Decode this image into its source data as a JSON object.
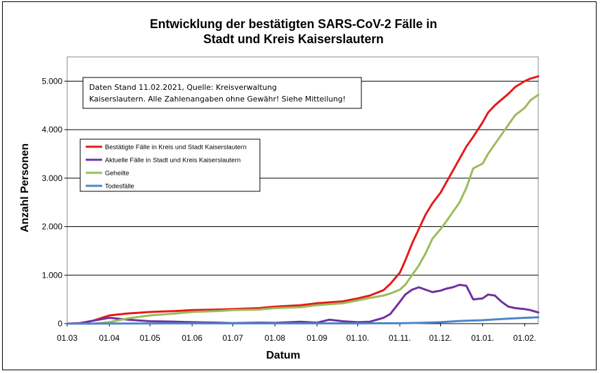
{
  "chart_data": {
    "type": "line",
    "title_line1": "Entwicklung der bestätigten SARS-CoV-2 Fälle in",
    "title_line2": "Stadt und Kreis Kaiserslautern",
    "xlabel": "Datum",
    "ylabel": "Anzahl Personen",
    "note_line1": "Daten Stand 11.02.2021, Quelle: Kreisverwaltung",
    "note_line2": "Kaiserslautern. Alle Zahlenangaben ohne Gewähr! Siehe Mitteilung!",
    "xlim": [
      "2020-03-01",
      "2021-02-11"
    ],
    "ylim": [
      0,
      5500
    ],
    "yticks": [
      0,
      1000,
      2000,
      3000,
      4000,
      5000
    ],
    "ytick_labels": [
      "0",
      "1.000",
      "2.000",
      "3.000",
      "4.000",
      "5.000"
    ],
    "xticks": [
      "2020-03-01",
      "2020-04-01",
      "2020-05-01",
      "2020-06-01",
      "2020-07-01",
      "2020-08-01",
      "2020-09-01",
      "2020-10-01",
      "2020-11-01",
      "2020-12-01",
      "2021-01-01",
      "2021-02-01"
    ],
    "xtick_labels": [
      "01.03",
      "01.04",
      "01.05",
      "01.06",
      "01.07",
      "01.08",
      "01.09",
      "01.10.",
      "01.11.",
      "01.12.",
      "01.01.",
      "01.02."
    ],
    "grid": true,
    "legend_position": "upper-left",
    "series": [
      {
        "name": "Bestätigte Fälle in Kreis und Stadt Kaiserslautern",
        "color": "#e41a1c",
        "x": [
          "2020-03-01",
          "2020-03-10",
          "2020-03-20",
          "2020-04-01",
          "2020-04-15",
          "2020-05-01",
          "2020-05-20",
          "2020-06-01",
          "2020-06-20",
          "2020-07-01",
          "2020-07-20",
          "2020-08-01",
          "2020-08-20",
          "2020-09-01",
          "2020-09-20",
          "2020-10-01",
          "2020-10-10",
          "2020-10-20",
          "2020-10-25",
          "2020-11-01",
          "2020-11-05",
          "2020-11-10",
          "2020-11-15",
          "2020-11-20",
          "2020-11-25",
          "2020-12-01",
          "2020-12-05",
          "2020-12-10",
          "2020-12-15",
          "2020-12-20",
          "2020-12-25",
          "2021-01-01",
          "2021-01-05",
          "2021-01-10",
          "2021-01-15",
          "2021-01-20",
          "2021-01-25",
          "2021-02-01",
          "2021-02-05",
          "2021-02-11"
        ],
        "y": [
          0,
          10,
          60,
          170,
          210,
          240,
          260,
          280,
          290,
          300,
          320,
          350,
          380,
          420,
          460,
          520,
          580,
          690,
          820,
          1050,
          1300,
          1650,
          1950,
          2250,
          2480,
          2700,
          2900,
          3150,
          3400,
          3650,
          3850,
          4150,
          4350,
          4500,
          4620,
          4740,
          4880,
          5000,
          5050,
          5100
        ]
      },
      {
        "name": "Aktuelle Fälle in Stadt und Kreis Kaiserslautern",
        "color": "#7030a0",
        "x": [
          "2020-03-01",
          "2020-03-10",
          "2020-03-20",
          "2020-04-01",
          "2020-04-15",
          "2020-05-01",
          "2020-05-20",
          "2020-06-01",
          "2020-06-20",
          "2020-07-01",
          "2020-07-20",
          "2020-08-01",
          "2020-08-20",
          "2020-09-01",
          "2020-09-10",
          "2020-09-20",
          "2020-10-01",
          "2020-10-10",
          "2020-10-20",
          "2020-10-25",
          "2020-11-01",
          "2020-11-05",
          "2020-11-10",
          "2020-11-15",
          "2020-11-20",
          "2020-11-25",
          "2020-12-01",
          "2020-12-05",
          "2020-12-10",
          "2020-12-15",
          "2020-12-20",
          "2020-12-25",
          "2021-01-01",
          "2021-01-05",
          "2021-01-10",
          "2021-01-15",
          "2021-01-20",
          "2021-01-25",
          "2021-02-01",
          "2021-02-05",
          "2021-02-11"
        ],
        "y": [
          0,
          5,
          60,
          120,
          80,
          50,
          40,
          30,
          20,
          10,
          20,
          15,
          40,
          20,
          80,
          50,
          30,
          40,
          120,
          200,
          450,
          600,
          700,
          750,
          700,
          650,
          680,
          720,
          750,
          800,
          780,
          500,
          520,
          600,
          580,
          450,
          350,
          320,
          300,
          280,
          230
        ]
      },
      {
        "name": "Geheilte",
        "color": "#9bbb59",
        "x": [
          "2020-03-01",
          "2020-03-20",
          "2020-04-01",
          "2020-04-15",
          "2020-05-01",
          "2020-05-20",
          "2020-06-01",
          "2020-06-20",
          "2020-07-01",
          "2020-07-20",
          "2020-08-01",
          "2020-08-20",
          "2020-09-01",
          "2020-09-20",
          "2020-10-01",
          "2020-10-10",
          "2020-10-20",
          "2020-10-25",
          "2020-11-01",
          "2020-11-05",
          "2020-11-10",
          "2020-11-15",
          "2020-11-20",
          "2020-11-25",
          "2020-12-01",
          "2020-12-05",
          "2020-12-10",
          "2020-12-15",
          "2020-12-20",
          "2020-12-25",
          "2021-01-01",
          "2021-01-05",
          "2021-01-10",
          "2021-01-15",
          "2021-01-20",
          "2021-01-25",
          "2021-02-01",
          "2021-02-05",
          "2021-02-11"
        ],
        "y": [
          0,
          0,
          30,
          110,
          170,
          210,
          240,
          260,
          280,
          290,
          320,
          340,
          380,
          420,
          480,
          530,
          580,
          620,
          700,
          800,
          1000,
          1200,
          1450,
          1750,
          1950,
          2100,
          2300,
          2500,
          2800,
          3200,
          3300,
          3500,
          3700,
          3900,
          4100,
          4300,
          4450,
          4600,
          4720
        ]
      },
      {
        "name": "Todesfälle",
        "color": "#4a86c8",
        "x": [
          "2020-03-01",
          "2020-04-01",
          "2020-05-01",
          "2020-06-01",
          "2020-07-01",
          "2020-08-01",
          "2020-09-01",
          "2020-10-01",
          "2020-11-01",
          "2020-11-15",
          "2020-12-01",
          "2020-12-15",
          "2021-01-01",
          "2021-01-15",
          "2021-02-01",
          "2021-02-11"
        ],
        "y": [
          0,
          2,
          4,
          5,
          5,
          5,
          5,
          5,
          8,
          15,
          30,
          55,
          70,
          95,
          120,
          130
        ]
      }
    ]
  }
}
